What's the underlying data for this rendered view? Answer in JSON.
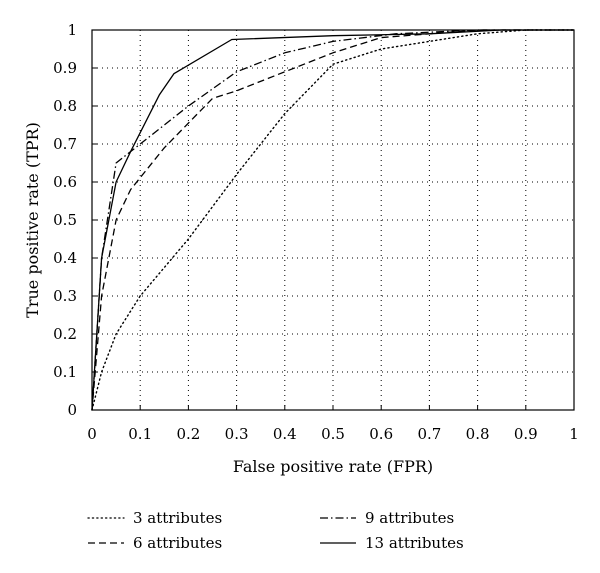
{
  "chart_data": {
    "type": "line",
    "title": "",
    "xlabel": "False positive rate (FPR)",
    "ylabel": "True positive rate (TPR)",
    "xlim": [
      0,
      1
    ],
    "ylim": [
      0,
      1
    ],
    "xticks": [
      "0",
      "0.1",
      "0.2",
      "0.3",
      "0.4",
      "0.5",
      "0.6",
      "0.7",
      "0.8",
      "0.9",
      "1"
    ],
    "yticks": [
      "0",
      "0.1",
      "0.2",
      "0.3",
      "0.4",
      "0.5",
      "0.6",
      "0.7",
      "0.8",
      "0.9",
      "1"
    ],
    "grid": true,
    "legend_position": "bottom",
    "series": [
      {
        "name": "3 attributes",
        "style": "dotted",
        "color": "#000000",
        "points": [
          [
            0,
            0
          ],
          [
            0.02,
            0.1
          ],
          [
            0.05,
            0.2
          ],
          [
            0.1,
            0.3
          ],
          [
            0.2,
            0.45
          ],
          [
            0.3,
            0.62
          ],
          [
            0.4,
            0.78
          ],
          [
            0.5,
            0.91
          ],
          [
            0.6,
            0.95
          ],
          [
            0.7,
            0.97
          ],
          [
            0.8,
            0.99
          ],
          [
            0.9,
            1.0
          ],
          [
            1.0,
            1.0
          ]
        ]
      },
      {
        "name": "6 attributes",
        "style": "dashed",
        "color": "#000000",
        "points": [
          [
            0,
            0
          ],
          [
            0.02,
            0.3
          ],
          [
            0.05,
            0.5
          ],
          [
            0.08,
            0.58
          ],
          [
            0.15,
            0.69
          ],
          [
            0.25,
            0.82
          ],
          [
            0.3,
            0.84
          ],
          [
            0.4,
            0.89
          ],
          [
            0.5,
            0.94
          ],
          [
            0.6,
            0.98
          ],
          [
            0.7,
            0.99
          ],
          [
            0.8,
            1.0
          ],
          [
            1.0,
            1.0
          ]
        ]
      },
      {
        "name": "9 attributes",
        "style": "dashdot",
        "color": "#000000",
        "points": [
          [
            0,
            0
          ],
          [
            0.02,
            0.4
          ],
          [
            0.05,
            0.65
          ],
          [
            0.1,
            0.7
          ],
          [
            0.2,
            0.8
          ],
          [
            0.3,
            0.89
          ],
          [
            0.4,
            0.94
          ],
          [
            0.5,
            0.97
          ],
          [
            0.63,
            0.99
          ],
          [
            0.8,
            1.0
          ],
          [
            1.0,
            1.0
          ]
        ]
      },
      {
        "name": "13 attributes",
        "style": "solid",
        "color": "#000000",
        "points": [
          [
            0,
            0
          ],
          [
            0.02,
            0.4
          ],
          [
            0.05,
            0.6
          ],
          [
            0.08,
            0.68
          ],
          [
            0.14,
            0.83
          ],
          [
            0.17,
            0.885
          ],
          [
            0.29,
            0.975
          ],
          [
            0.5,
            0.985
          ],
          [
            0.7,
            0.99
          ],
          [
            0.85,
            1.0
          ],
          [
            1.0,
            1.0
          ]
        ]
      }
    ]
  }
}
